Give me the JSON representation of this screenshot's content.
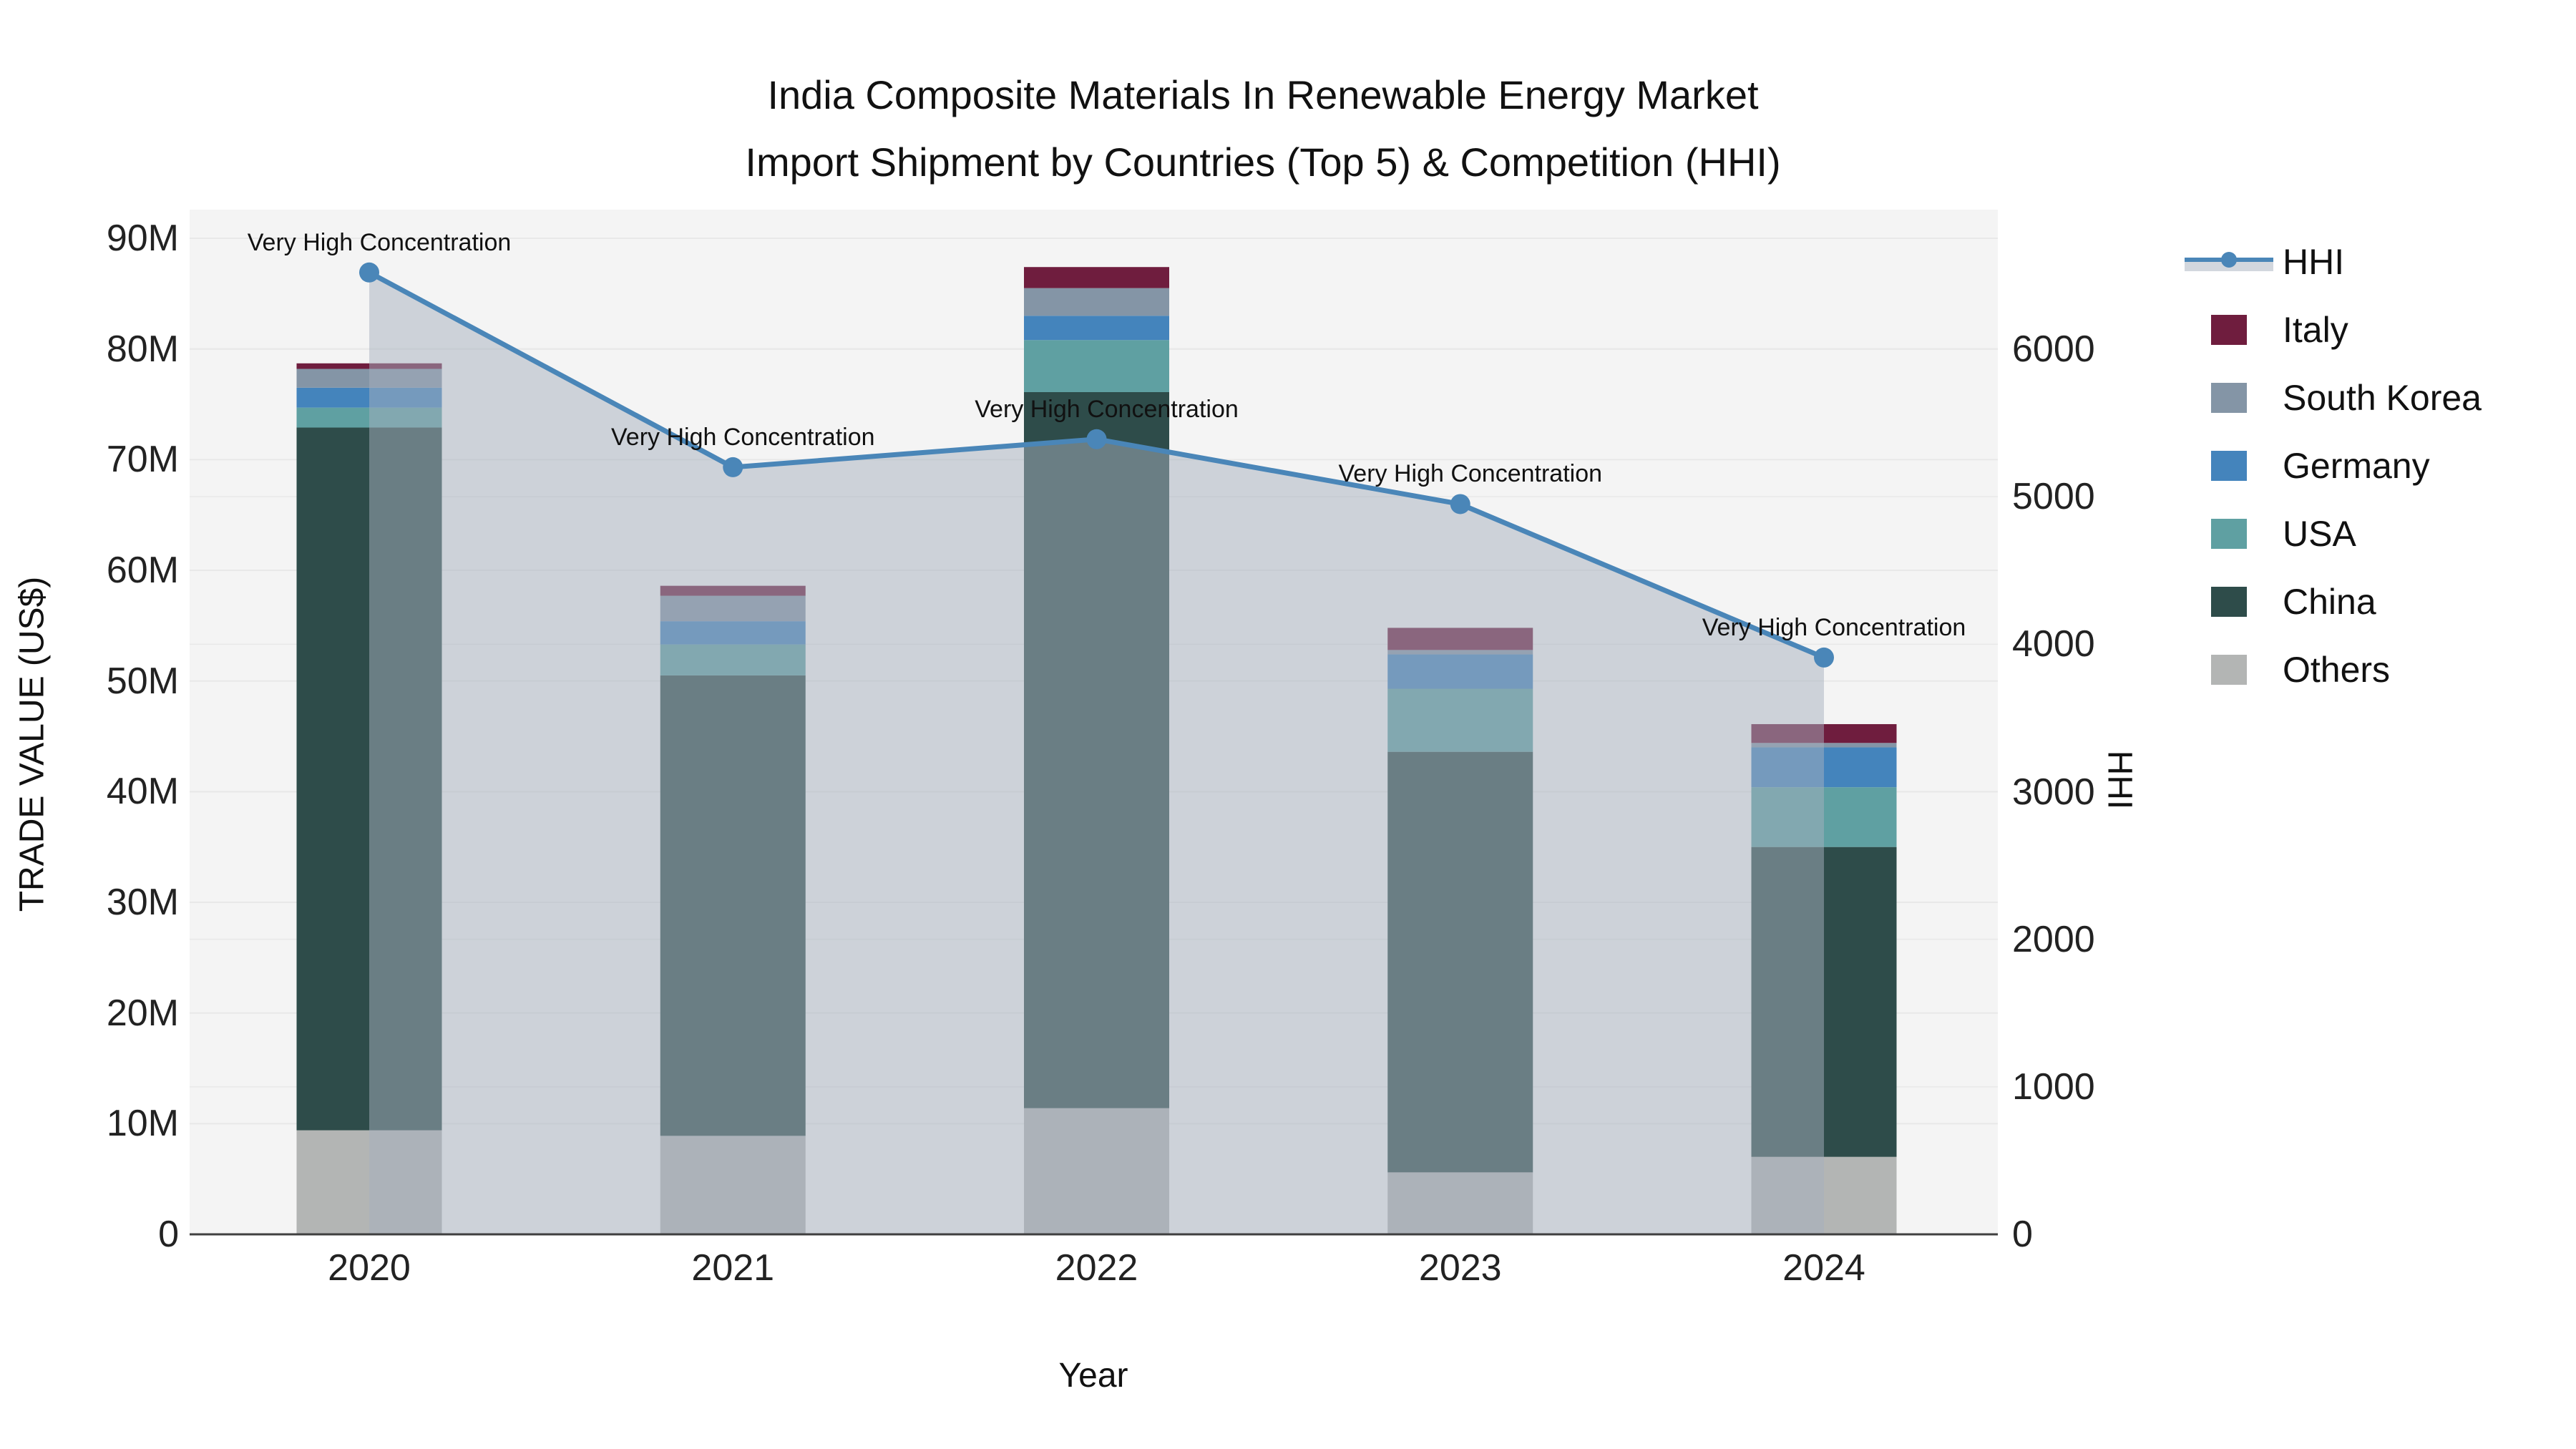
{
  "chart_data": {
    "type": "bar+line",
    "title": "India Composite Materials In Renewable Energy Market",
    "subtitle": "Import Shipment by Countries (Top 5) & Competition (HHI)",
    "xlabel": "Year",
    "ylabel_left": "TRADE VALUE (US$)",
    "ylabel_right": "HHI",
    "categories": [
      "2020",
      "2021",
      "2022",
      "2023",
      "2024"
    ],
    "value_unit": "million US$",
    "series": [
      {
        "name": "Others",
        "color": "#b3b5b4",
        "values": [
          9.4,
          8.9,
          11.4,
          5.6,
          7.0
        ]
      },
      {
        "name": "China",
        "color": "#2e4c4a",
        "values": [
          63.5,
          41.6,
          64.7,
          38.0,
          28.0
        ]
      },
      {
        "name": "USA",
        "color": "#5fa0a2",
        "values": [
          1.8,
          2.8,
          4.7,
          5.7,
          5.4
        ]
      },
      {
        "name": "Germany",
        "color": "#4484bc",
        "values": [
          1.8,
          2.1,
          2.2,
          3.1,
          3.6
        ]
      },
      {
        "name": "South Korea",
        "color": "#8495a6",
        "values": [
          1.7,
          2.3,
          2.5,
          0.4,
          0.4
        ]
      },
      {
        "name": "Italy",
        "color": "#6f1d3e",
        "values": [
          0.5,
          0.9,
          1.9,
          2.0,
          1.7
        ]
      }
    ],
    "stack_totals": [
      78.7,
      58.6,
      87.4,
      54.8,
      46.1
    ],
    "hhi": {
      "name": "HHI",
      "line_color": "#4a86b8",
      "area_fill": "rgba(166,176,190,0.5)",
      "values": [
        6520,
        5200,
        5390,
        4950,
        3910
      ]
    },
    "annotations": [
      {
        "category": "2020",
        "text": "Very High Concentration"
      },
      {
        "category": "2021",
        "text": "Very High Concentration"
      },
      {
        "category": "2022",
        "text": "Very High Concentration"
      },
      {
        "category": "2023",
        "text": "Very High Concentration"
      },
      {
        "category": "2024",
        "text": "Very High Concentration"
      }
    ],
    "y_left": {
      "range_millions": [
        0,
        90
      ],
      "ticks": [
        "0",
        "10M",
        "20M",
        "30M",
        "40M",
        "50M",
        "60M",
        "70M",
        "80M",
        "90M"
      ]
    },
    "y_right": {
      "range": [
        0,
        6935
      ],
      "ticks": [
        "0",
        "1000",
        "2000",
        "3000",
        "4000",
        "5000",
        "6000"
      ]
    },
    "legend": [
      {
        "label": "HHI",
        "type": "line",
        "color": "#4a86b8"
      },
      {
        "label": "Italy",
        "type": "swatch",
        "color": "#6f1d3e"
      },
      {
        "label": "South Korea",
        "type": "swatch",
        "color": "#8495a6"
      },
      {
        "label": "Germany",
        "type": "swatch",
        "color": "#4484bc"
      },
      {
        "label": "USA",
        "type": "swatch",
        "color": "#5fa0a2"
      },
      {
        "label": "China",
        "type": "swatch",
        "color": "#2e4c4a"
      },
      {
        "label": "Others",
        "type": "swatch",
        "color": "#b3b5b4"
      }
    ],
    "layout_hints": {
      "plot_bg": "#f4f4f4",
      "grid_color": "#e8e8e8",
      "axis_line_color": "#3f3f3f",
      "legend_position": "right",
      "bars_stacked": true
    }
  }
}
